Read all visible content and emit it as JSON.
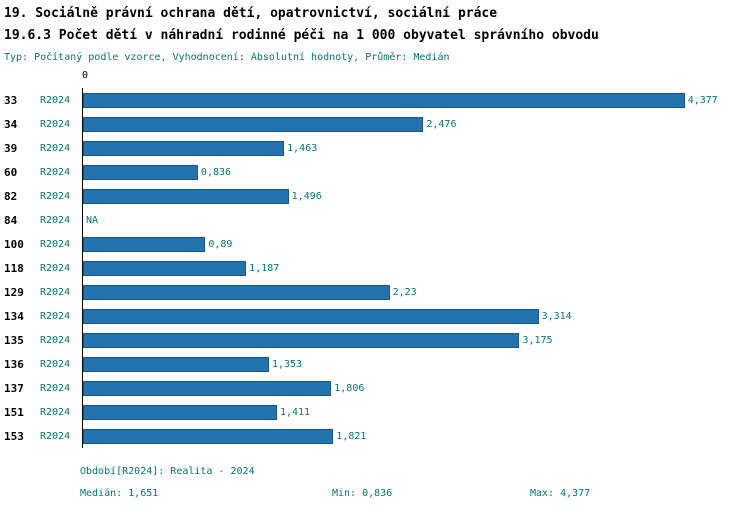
{
  "header": {
    "title_line1": "19. Sociálně právní ochrana dětí, opatrovnictví, sociální práce",
    "title_line2": "19.6.3 Počet dětí v náhradní rodinné péči na 1 000 obyvatel správního obvodu",
    "meta_line": "Typ: Počítaný podle vzorce, Vyhodnocení: Absolutní hodnoty, Průměr: Medián"
  },
  "chart_data": {
    "type": "bar",
    "orientation": "horizontal",
    "title": "19.6.3 Počet dětí v náhradní rodinné péči na 1 000 obyvatel správního obvodu",
    "axis_zero_label": "0",
    "period": "R2024",
    "categories": [
      "33",
      "34",
      "39",
      "60",
      "82",
      "84",
      "100",
      "118",
      "129",
      "134",
      "135",
      "136",
      "137",
      "151",
      "153"
    ],
    "values": [
      4.377,
      2.476,
      1.463,
      0.836,
      1.496,
      null,
      0.89,
      1.187,
      2.23,
      3.314,
      3.175,
      1.353,
      1.806,
      1.411,
      1.821
    ],
    "value_labels": [
      "4,377",
      "2,476",
      "1,463",
      "0,836",
      "1,496",
      "NA",
      "0,89",
      "1,187",
      "2,23",
      "3,314",
      "3,175",
      "1,353",
      "1,806",
      "1,411",
      "1,821"
    ],
    "xlim": [
      0,
      4.75
    ],
    "grid": false,
    "legend": "none",
    "bar_color": "#2373ae",
    "label_color": "#067575"
  },
  "footer": {
    "period_line": "Období[R2024]: Realita - 2024",
    "median": "Medián: 1,651",
    "min": "Min: 0,836",
    "max": "Max: 4,377"
  }
}
